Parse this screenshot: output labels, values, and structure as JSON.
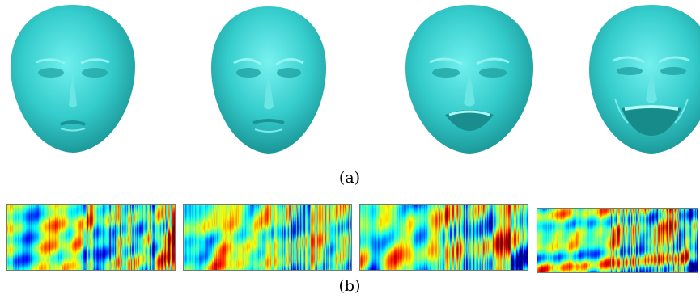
{
  "captions": {
    "a": "(a)",
    "b": "(b)"
  },
  "faces": [
    {
      "name": "face-neutral",
      "expression": "neutral"
    },
    {
      "name": "face-slight",
      "expression": "slight"
    },
    {
      "name": "face-smile",
      "expression": "smile"
    },
    {
      "name": "face-broad-smile",
      "expression": "broad-smile"
    }
  ],
  "colors": {
    "face_base": "#3fd2d2",
    "face_dark": "#1c9e9e",
    "face_light": "#8ff2f0",
    "colormap": [
      "#00008f",
      "#0000ff",
      "#00ffff",
      "#ffff00",
      "#ff0000",
      "#800000"
    ]
  },
  "heatmaps": [
    {
      "name": "heatmap-1",
      "seed": 11
    },
    {
      "name": "heatmap-2",
      "seed": 23
    },
    {
      "name": "heatmap-3",
      "seed": 37
    },
    {
      "name": "heatmap-4",
      "seed": 51
    }
  ]
}
